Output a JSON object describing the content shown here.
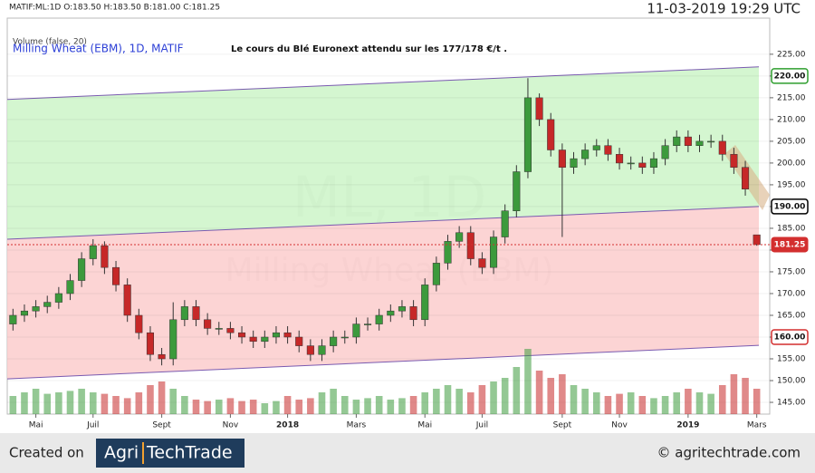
{
  "chart_data": {
    "type": "candlestick",
    "header": "MATIF:ML:1D O:183.50 H:183.50 B:181.00 C:181.25",
    "volume_label": "Volume (false, 20)",
    "symbol": "Milling Wheat (EBM), 1D, MATIF",
    "title": "Le cours du Blé Euronext attendu sur les 177/178 €/t .",
    "timestamp": "11-03-2019 19:29 UTC",
    "watermark": "ML, 1D",
    "watermark_name": "Milling Wheat (EBM)",
    "categories": [
      null,
      null,
      "Mai",
      null,
      null,
      null,
      null,
      "Juil",
      null,
      null,
      null,
      null,
      null,
      "Sept",
      null,
      null,
      null,
      null,
      null,
      "Nov",
      null,
      null,
      null,
      null,
      "2018",
      null,
      null,
      null,
      null,
      null,
      "Mars",
      null,
      null,
      null,
      null,
      null,
      "Mai",
      null,
      null,
      null,
      null,
      "Juil",
      null,
      null,
      null,
      null,
      null,
      null,
      "Sept",
      null,
      null,
      null,
      null,
      "Nov",
      null,
      null,
      null,
      null,
      null,
      "2019",
      null,
      null,
      null,
      null,
      null,
      "Mars"
    ],
    "open": [
      163,
      165,
      166,
      167,
      168,
      170,
      173,
      178,
      181,
      176,
      172,
      165,
      161,
      156,
      155,
      164,
      167,
      164,
      162,
      162,
      161,
      160,
      159,
      160,
      161,
      160,
      158,
      156,
      158,
      160,
      160,
      163,
      163,
      165,
      166,
      167,
      164,
      172,
      177,
      182,
      184,
      178,
      176,
      183,
      189,
      198,
      215,
      210,
      203,
      199,
      201,
      203,
      204,
      202,
      200,
      200,
      199,
      201,
      204,
      206,
      204,
      205,
      205,
      202,
      199,
      183.5
    ],
    "high": [
      166.5,
      167.5,
      168.5,
      169.5,
      171.5,
      174.5,
      179.5,
      182.5,
      182,
      177.5,
      173.5,
      166.5,
      162.5,
      157.5,
      168,
      168.5,
      168.5,
      165.5,
      163.5,
      163.5,
      162.5,
      161.5,
      161.5,
      162.5,
      162.5,
      161.5,
      159.5,
      159.5,
      161.5,
      161.5,
      164.5,
      164.5,
      166.5,
      167.5,
      168.5,
      168.5,
      173.5,
      178.5,
      183.5,
      185.5,
      185.5,
      179.5,
      184.5,
      190.5,
      199.5,
      219.5,
      216,
      211.5,
      204.5,
      202.5,
      204.5,
      205.5,
      205.5,
      203.5,
      201.5,
      201.5,
      202.5,
      205.5,
      207.5,
      207.5,
      206.5,
      206.5,
      206.5,
      203.5,
      200.5,
      183.5
    ],
    "low": [
      161.5,
      163.5,
      164.5,
      165.5,
      166.5,
      168.5,
      171.5,
      176.5,
      174.5,
      170.5,
      163.5,
      159.5,
      154.5,
      153.5,
      153.5,
      162.5,
      162.5,
      160.5,
      160.5,
      159.5,
      158.5,
      157.5,
      157.5,
      158.5,
      158.5,
      156.5,
      154.5,
      154.5,
      156.5,
      158.5,
      158.5,
      161.5,
      161.5,
      163.5,
      164.5,
      162.5,
      162.5,
      170.5,
      175.5,
      180.5,
      176.5,
      174.5,
      174.5,
      181.5,
      187.5,
      196.5,
      208.5,
      201.5,
      183,
      197.5,
      199.5,
      201.5,
      200.5,
      198.5,
      198.5,
      197.5,
      197.5,
      199.5,
      202.5,
      202.5,
      202.5,
      203.5,
      200.5,
      197.5,
      192.5,
      181
    ],
    "close": [
      165,
      166,
      167,
      168,
      170,
      173,
      178,
      181,
      176,
      172,
      165,
      161,
      156,
      155,
      164,
      167,
      164,
      162,
      162,
      161,
      160,
      159,
      160,
      161,
      160,
      158,
      156,
      158,
      160,
      160,
      163,
      163,
      165,
      166,
      167,
      164,
      172,
      177,
      182,
      184,
      178,
      176,
      183,
      189,
      198,
      215,
      210,
      203,
      199,
      201,
      203,
      204,
      202,
      200,
      200,
      199,
      201,
      204,
      206,
      204,
      205,
      205,
      202,
      199,
      194,
      181.25
    ],
    "volume": [
      25,
      30,
      35,
      28,
      30,
      32,
      35,
      30,
      28,
      25,
      22,
      30,
      40,
      45,
      35,
      25,
      20,
      18,
      20,
      22,
      18,
      20,
      15,
      18,
      25,
      20,
      22,
      30,
      35,
      25,
      20,
      22,
      25,
      20,
      22,
      25,
      30,
      35,
      40,
      35,
      30,
      40,
      45,
      50,
      65,
      90,
      60,
      50,
      55,
      40,
      35,
      30,
      25,
      28,
      30,
      25,
      22,
      25,
      30,
      35,
      30,
      28,
      40,
      55,
      50,
      35
    ],
    "volume_lim": [
      0,
      100
    ],
    "up_color": "#3c9a3c",
    "down_color": "#c62828",
    "ylim": [
      142.3,
      233.3
    ],
    "yticks": [
      {
        "value": 145,
        "label": "145.00"
      },
      {
        "value": 150,
        "label": "150.00"
      },
      {
        "value": 155,
        "label": "155.00"
      },
      {
        "value": 160,
        "label": "160.00"
      },
      {
        "value": 165,
        "label": "165.00"
      },
      {
        "value": 170,
        "label": "170.00"
      },
      {
        "value": 175,
        "label": "175.00"
      },
      {
        "value": 180,
        "label": "180.00"
      },
      {
        "value": 185,
        "label": "185.00"
      },
      {
        "value": 190,
        "label": "190.00"
      },
      {
        "value": 195,
        "label": "195.00"
      },
      {
        "value": 200,
        "label": "200.00"
      },
      {
        "value": 205,
        "label": "205.00"
      },
      {
        "value": 210,
        "label": "210.00"
      },
      {
        "value": 215,
        "label": "215.00"
      },
      {
        "value": 220,
        "label": "220.00"
      },
      {
        "value": 225,
        "label": "225.00"
      }
    ],
    "channel": {
      "upper": [
        214.6,
        222.1
      ],
      "middle": [
        182.5,
        190
      ],
      "lower": [
        150.4,
        158.1
      ]
    },
    "price_markers": [
      {
        "value": 220,
        "label": "220.00",
        "color": "#2e9e2e",
        "filled": false
      },
      {
        "value": 190,
        "label": "190.00",
        "color": "#000000",
        "filled": false
      },
      {
        "value": 181.25,
        "label": "181.25",
        "color": "#d32f2f",
        "filled": true
      },
      {
        "value": 160,
        "label": "160.00",
        "color": "#d32f2f",
        "filled": false
      }
    ],
    "grid": true
  },
  "footer": {
    "created": "Created on",
    "logo_a": "Agri",
    "logo_b": "TechTrade",
    "site": "© agritechtrade.com"
  }
}
